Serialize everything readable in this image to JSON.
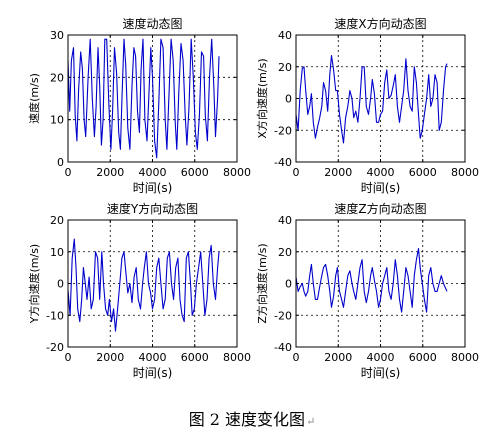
{
  "caption": {
    "text": "图 2  速度变化图",
    "mark": "↵"
  },
  "chart_data": [
    {
      "type": "line",
      "title": "速度动态图",
      "xlabel": "时间(s)",
      "ylabel": "速度(m/s)",
      "xlim": [
        0,
        8000
      ],
      "ylim": [
        0,
        30
      ],
      "xticks": [
        0,
        2000,
        4000,
        6000,
        8000
      ],
      "yticks": [
        0,
        10,
        20,
        30
      ],
      "grid": true,
      "color": "#0000cc",
      "series": [
        {
          "x": [
            0,
            80,
            160,
            260,
            340,
            420,
            500,
            600,
            680,
            760,
            840,
            950,
            1050,
            1150,
            1250,
            1330,
            1420,
            1500,
            1580,
            1660,
            1740,
            1830,
            1930,
            2030,
            2110,
            2200,
            2300,
            2400,
            2480,
            2560,
            2650,
            2730,
            2830,
            2930,
            3030,
            3120,
            3200,
            3290,
            3380,
            3460,
            3550,
            3640,
            3740,
            3840,
            3920,
            4000,
            4100,
            4200,
            4300,
            4400,
            4500,
            4600,
            4680,
            4780,
            4880,
            4980,
            5080,
            5150,
            5250,
            5350,
            5450,
            5550,
            5630,
            5730,
            5830,
            5930,
            6030,
            6120,
            6220,
            6320,
            6420,
            6500,
            6600,
            6700,
            6800,
            6900,
            6980,
            7080,
            7150
          ],
          "y": [
            24,
            12,
            24,
            27,
            11,
            5,
            17,
            26,
            22,
            10,
            6,
            20,
            29,
            15,
            6,
            13,
            27,
            18,
            4,
            10,
            29,
            29,
            14,
            3,
            12,
            27,
            21,
            7,
            3,
            16,
            29,
            23,
            8,
            3,
            18,
            27,
            25,
            12,
            7,
            22,
            29,
            10,
            5,
            17,
            27,
            20,
            5,
            1,
            14,
            29,
            27,
            10,
            3,
            16,
            29,
            24,
            9,
            3,
            17,
            28,
            24,
            11,
            4,
            13,
            29,
            20,
            7,
            3,
            11,
            26,
            25,
            11,
            5,
            20,
            29,
            18,
            6,
            15,
            25
          ]
        }
      ]
    },
    {
      "type": "line",
      "title": "速度X方向动态图",
      "xlabel": "时间(s)",
      "ylabel": "X方向速度(m/s)",
      "xlim": [
        0,
        8000
      ],
      "ylim": [
        -40,
        40
      ],
      "xticks": [
        0,
        2000,
        4000,
        6000,
        8000
      ],
      "yticks": [
        -40,
        -20,
        0,
        20,
        40
      ],
      "grid": true,
      "color": "#0000cc",
      "series": [
        {
          "x": [
            0,
            100,
            200,
            300,
            380,
            460,
            560,
            650,
            730,
            820,
            920,
            1020,
            1120,
            1220,
            1300,
            1400,
            1500,
            1600,
            1680,
            1780,
            1880,
            1960,
            2060,
            2160,
            2250,
            2350,
            2450,
            2550,
            2650,
            2730,
            2830,
            2930,
            3030,
            3130,
            3230,
            3330,
            3430,
            3530,
            3610,
            3710,
            3810,
            3910,
            4000,
            4100,
            4200,
            4300,
            4400,
            4500,
            4600,
            4700,
            4800,
            4900,
            5000,
            5100,
            5200,
            5300,
            5400,
            5500,
            5600,
            5700,
            5800,
            5880,
            5980,
            6080,
            6180,
            6280,
            6380,
            6480,
            6580,
            6680,
            6780,
            6880,
            6980,
            7080,
            7150
          ],
          "y": [
            -10,
            -20,
            5,
            19,
            20,
            5,
            -10,
            -5,
            3,
            -15,
            -25,
            -18,
            -12,
            -5,
            10,
            5,
            -8,
            15,
            27,
            18,
            5,
            5,
            -10,
            -20,
            -28,
            -12,
            -5,
            5,
            0,
            -12,
            -8,
            -15,
            0,
            20,
            20,
            -5,
            -10,
            0,
            12,
            3,
            -15,
            -15,
            -10,
            -8,
            10,
            18,
            0,
            2,
            8,
            15,
            -5,
            -15,
            -5,
            5,
            25,
            5,
            -5,
            -8,
            20,
            10,
            -10,
            -25,
            -20,
            -10,
            0,
            15,
            -5,
            0,
            15,
            10,
            -20,
            -15,
            5,
            20,
            22
          ]
        }
      ]
    },
    {
      "type": "line",
      "title": "速度Y方向动态图",
      "xlabel": "时间(s)",
      "ylabel": "Y方向速度(m/s)",
      "xlim": [
        0,
        8000
      ],
      "ylim": [
        -20,
        20
      ],
      "xticks": [
        0,
        2000,
        4000,
        6000,
        8000
      ],
      "yticks": [
        -20,
        -10,
        0,
        10,
        20
      ],
      "grid": true,
      "color": "#0000cc",
      "series": [
        {
          "x": [
            0,
            100,
            200,
            300,
            380,
            460,
            560,
            650,
            730,
            820,
            900,
            1000,
            1100,
            1200,
            1300,
            1400,
            1500,
            1600,
            1680,
            1780,
            1880,
            1960,
            2060,
            2160,
            2250,
            2350,
            2450,
            2550,
            2650,
            2730,
            2830,
            2930,
            3030,
            3130,
            3230,
            3330,
            3430,
            3530,
            3610,
            3710,
            3810,
            3910,
            4000,
            4100,
            4200,
            4300,
            4400,
            4500,
            4600,
            4700,
            4800,
            4900,
            5000,
            5100,
            5200,
            5300,
            5400,
            5500,
            5600,
            5700,
            5800,
            5880,
            5980,
            6080,
            6180,
            6280,
            6380,
            6480,
            6580,
            6680,
            6780,
            6880,
            6980,
            7080,
            7150
          ],
          "y": [
            -2,
            -10,
            8,
            14,
            5,
            -8,
            -12,
            -5,
            5,
            0,
            -5,
            2,
            -8,
            -5,
            10,
            8,
            -5,
            10,
            0,
            -8,
            -10,
            -5,
            -12,
            -8,
            -15,
            -8,
            0,
            8,
            10,
            4,
            -3,
            0,
            -6,
            2,
            5,
            -5,
            -8,
            0,
            5,
            10,
            0,
            -3,
            -8,
            -5,
            5,
            8,
            0,
            -8,
            -5,
            8,
            10,
            0,
            -5,
            5,
            8,
            -5,
            -10,
            -12,
            8,
            10,
            0,
            -10,
            -8,
            0,
            5,
            10,
            0,
            -10,
            -5,
            8,
            12,
            0,
            -5,
            5,
            10
          ]
        }
      ]
    },
    {
      "type": "line",
      "title": "速度Z方向动态图",
      "xlabel": "时间(s)",
      "ylabel": "Z方向速度(m/s)",
      "xlim": [
        0,
        8000
      ],
      "ylim": [
        -40,
        40
      ],
      "xticks": [
        0,
        2000,
        4000,
        6000,
        8000
      ],
      "yticks": [
        -40,
        -20,
        0,
        20,
        40
      ],
      "grid": true,
      "color": "#0000cc",
      "series": [
        {
          "x": [
            0,
            100,
            200,
            300,
            380,
            460,
            560,
            650,
            730,
            820,
            920,
            1020,
            1120,
            1220,
            1300,
            1400,
            1500,
            1600,
            1680,
            1780,
            1880,
            1960,
            2060,
            2160,
            2250,
            2350,
            2450,
            2550,
            2650,
            2730,
            2830,
            2930,
            3030,
            3130,
            3230,
            3330,
            3430,
            3530,
            3610,
            3710,
            3810,
            3910,
            4000,
            4100,
            4200,
            4300,
            4400,
            4500,
            4600,
            4700,
            4800,
            4900,
            5000,
            5100,
            5200,
            5300,
            5400,
            5500,
            5600,
            5700,
            5800,
            5880,
            5980,
            6080,
            6180,
            6280,
            6380,
            6480,
            6580,
            6680,
            6780,
            6880,
            6980,
            7080,
            7150
          ],
          "y": [
            4,
            -5,
            -2,
            0,
            -5,
            -8,
            -5,
            5,
            12,
            0,
            -10,
            -10,
            -2,
            5,
            10,
            12,
            5,
            -5,
            -15,
            -8,
            5,
            10,
            -5,
            -10,
            -15,
            -5,
            5,
            8,
            0,
            -5,
            -10,
            0,
            10,
            15,
            -5,
            -12,
            -5,
            5,
            10,
            2,
            -5,
            -15,
            -10,
            0,
            5,
            10,
            -5,
            -10,
            0,
            15,
            5,
            -10,
            -18,
            -5,
            10,
            5,
            -5,
            -15,
            5,
            15,
            22,
            10,
            0,
            -10,
            -18,
            5,
            10,
            0,
            -5,
            -5,
            0,
            5,
            0,
            -3,
            -5
          ]
        }
      ]
    }
  ]
}
